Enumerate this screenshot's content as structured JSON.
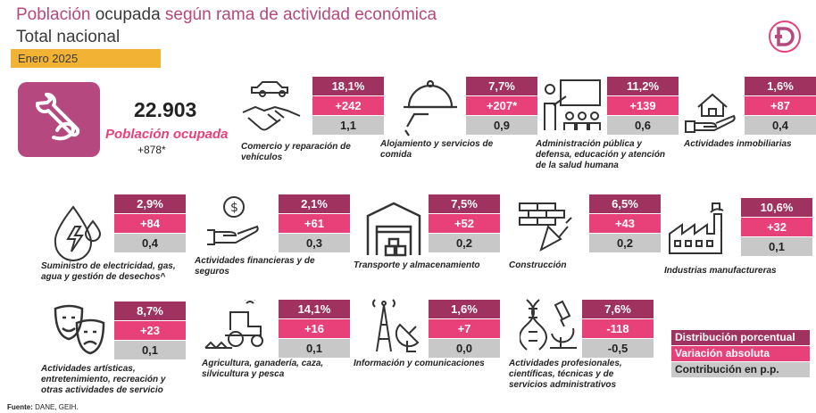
{
  "header": {
    "title_part1": "Población",
    "title_part2": " ocupada ",
    "title_part3": "según rama de actividad económica",
    "subtitle": "Total nacional",
    "period": "Enero 2025"
  },
  "total": {
    "value": "22.903",
    "label": "Población ocupada",
    "variation": "+878*"
  },
  "colors": {
    "distribution": "#a0325f",
    "variation": "#e8417a",
    "contribution": "#c8c8c8",
    "accent": "#b5487e",
    "period_bg": "#f2b233"
  },
  "sectors": [
    {
      "name_l1": "Comercio y reparación de",
      "name_l2": "vehículos",
      "name_l3": "",
      "dist": "18,1%",
      "var": "+242",
      "contrib": "1,1",
      "icon": "handshake-car-icon"
    },
    {
      "name_l1": "Alojamiento y servicios de",
      "name_l2": "comida",
      "name_l3": "",
      "dist": "7,7%",
      "var": "+207*",
      "contrib": "0,9",
      "icon": "cloche-icon"
    },
    {
      "name_l1": "Administración pública y",
      "name_l2": "defensa, educación y atención",
      "name_l3": "de la salud humana",
      "dist": "11,2%",
      "var": "+139",
      "contrib": "0,6",
      "icon": "teacher-icon"
    },
    {
      "name_l1": "Actividades inmobiliarias",
      "name_l2": "",
      "name_l3": "",
      "dist": "1,6%",
      "var": "+87",
      "contrib": "0,4",
      "icon": "house-hand-icon"
    },
    {
      "name_l1": "Suministro de electricidad, gas,",
      "name_l2": "agua y gestión de desechos^",
      "name_l3": "",
      "dist": "2,9%",
      "var": "+84",
      "contrib": "0,4",
      "icon": "energy-drop-icon"
    },
    {
      "name_l1": "Actividades financieras y de",
      "name_l2": "seguros",
      "name_l3": "",
      "dist": "2,1%",
      "var": "+61",
      "contrib": "0,3",
      "icon": "money-hand-icon"
    },
    {
      "name_l1": "Transporte y almacenamiento",
      "name_l2": "",
      "name_l3": "",
      "dist": "7,5%",
      "var": "+52",
      "contrib": "0,2",
      "icon": "warehouse-icon"
    },
    {
      "name_l1": "Construcción",
      "name_l2": "",
      "name_l3": "",
      "dist": "6,5%",
      "var": "+43",
      "contrib": "0,2",
      "icon": "brick-trowel-icon"
    },
    {
      "name_l1": "Industrias manufactureras",
      "name_l2": "",
      "name_l3": "",
      "dist": "10,6%",
      "var": "+32",
      "contrib": "0,1",
      "icon": "factory-icon"
    },
    {
      "name_l1": "Actividades artísticas,",
      "name_l2": "entretenimiento, recreación y",
      "name_l3": "otras actividades de servicio",
      "dist": "8,7%",
      "var": "+23",
      "contrib": "0,1",
      "icon": "theater-masks-icon"
    },
    {
      "name_l1": "Agricultura, ganadería, caza,",
      "name_l2": "silvicultura y pesca",
      "name_l3": "",
      "dist": "14,1%",
      "var": "+16",
      "contrib": "0,1",
      "icon": "tractor-icon"
    },
    {
      "name_l1": "Información y comunicaciones",
      "name_l2": "",
      "name_l3": "",
      "dist": "1,6%",
      "var": "+7",
      "contrib": "0,0",
      "icon": "antenna-icon"
    },
    {
      "name_l1": "Actividades profesionales,",
      "name_l2": "científicas, técnicas y de",
      "name_l3": "servicios administrativos",
      "dist": "7,6%",
      "var": "-118",
      "contrib": "-0,5",
      "icon": "dna-microscope-icon"
    }
  ],
  "legend": {
    "distribution": "Distribución porcentual",
    "variation": "Variación absoluta",
    "contribution": "Contribución en p.p."
  },
  "footer": {
    "source_label": "Fuente:",
    "source_text": " DANE, GEIH."
  }
}
